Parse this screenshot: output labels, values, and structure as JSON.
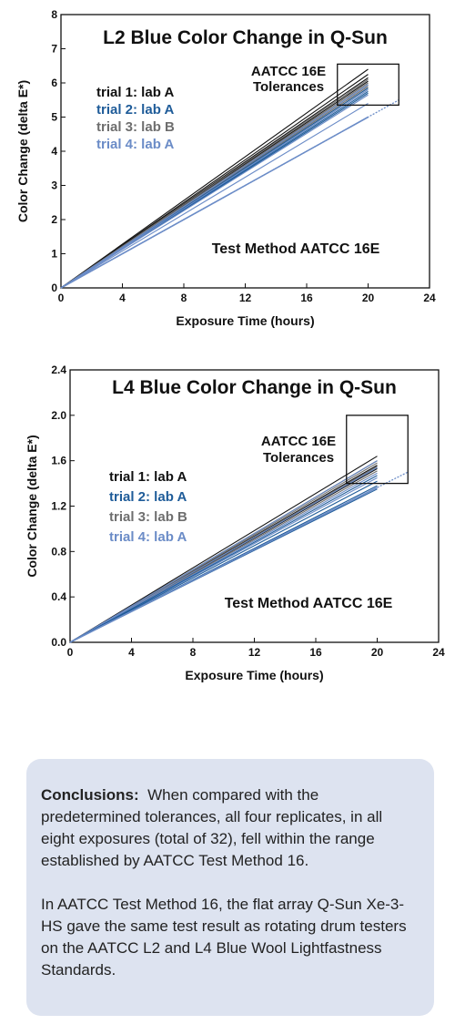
{
  "chart_data": [
    {
      "type": "line",
      "title": "L2 Blue Color Change in Q-Sun",
      "xlabel": "Exposure Time (hours)",
      "ylabel": "Color Change (delta E*)",
      "xlim": [
        0,
        24
      ],
      "ylim": [
        0,
        8
      ],
      "x_ticks": [
        "0",
        "4",
        "8",
        "12",
        "16",
        "20",
        "24"
      ],
      "y_ticks": [
        "0",
        "1",
        "2",
        "3",
        "4",
        "5",
        "6",
        "7",
        "8"
      ],
      "legend": [
        {
          "label": "trial 1: lab A",
          "color": "#111111"
        },
        {
          "label": "trial 2: lab A",
          "color": "#1f5c99"
        },
        {
          "label": "trial 3: lab B",
          "color": "#6e6e6e"
        },
        {
          "label": "trial 4: lab A",
          "color": "#6b8cc7"
        }
      ],
      "tolerance_label": [
        "AATCC 16E",
        "Tolerances"
      ],
      "tolerance_box": {
        "x": [
          18,
          22
        ],
        "y": [
          5.35,
          6.55
        ]
      },
      "method_label": "Test Method AATCC 16E",
      "reference_line": {
        "x": [
          0,
          22
        ],
        "y": [
          0,
          5.5
        ],
        "color": "#6b8cc7"
      },
      "series": [
        {
          "color": "#111111",
          "x": [
            0,
            20
          ],
          "y": [
            0,
            6.4
          ]
        },
        {
          "color": "#111111",
          "x": [
            0,
            20
          ],
          "y": [
            0,
            6.25
          ]
        },
        {
          "color": "#111111",
          "x": [
            0,
            20
          ],
          "y": [
            0,
            6.15
          ]
        },
        {
          "color": "#111111",
          "x": [
            0,
            20
          ],
          "y": [
            0,
            6.05
          ]
        },
        {
          "color": "#111111",
          "x": [
            0,
            20
          ],
          "y": [
            0,
            5.95
          ]
        },
        {
          "color": "#6e6e6e",
          "x": [
            0,
            20
          ],
          "y": [
            0,
            6.1
          ]
        },
        {
          "color": "#6e6e6e",
          "x": [
            0,
            20
          ],
          "y": [
            0,
            6.0
          ]
        },
        {
          "color": "#6e6e6e",
          "x": [
            0,
            20
          ],
          "y": [
            0,
            5.9
          ]
        },
        {
          "color": "#6e6e6e",
          "x": [
            0,
            20
          ],
          "y": [
            0,
            5.85
          ]
        },
        {
          "color": "#1f5c99",
          "x": [
            0,
            20
          ],
          "y": [
            0,
            5.85
          ]
        },
        {
          "color": "#1f5c99",
          "x": [
            0,
            20
          ],
          "y": [
            0,
            5.75
          ]
        },
        {
          "color": "#1f5c99",
          "x": [
            0,
            20
          ],
          "y": [
            0,
            5.7
          ]
        },
        {
          "color": "#6b8cc7",
          "x": [
            0,
            20
          ],
          "y": [
            0,
            5.95
          ]
        },
        {
          "color": "#6b8cc7",
          "x": [
            0,
            20
          ],
          "y": [
            0,
            5.8
          ]
        },
        {
          "color": "#6b8cc7",
          "x": [
            0,
            20
          ],
          "y": [
            0,
            5.65
          ]
        },
        {
          "color": "#6b8cc7",
          "x": [
            0,
            20
          ],
          "y": [
            0,
            5.4
          ]
        }
      ]
    },
    {
      "type": "line",
      "title": "L4 Blue Color Change in Q-Sun",
      "xlabel": "Exposure Time (hours)",
      "ylabel": "Color Change (delta E*)",
      "xlim": [
        0,
        24
      ],
      "ylim": [
        0,
        2.4
      ],
      "x_ticks": [
        "0",
        "4",
        "8",
        "12",
        "16",
        "20",
        "24"
      ],
      "y_ticks": [
        "0.0",
        "0.4",
        "0.8",
        "1.2",
        "1.6",
        "2.0",
        "2.4"
      ],
      "legend": [
        {
          "label": "trial 1: lab A",
          "color": "#111111"
        },
        {
          "label": "trial 2: lab A",
          "color": "#1f5c99"
        },
        {
          "label": "trial 3: lab B",
          "color": "#6e6e6e"
        },
        {
          "label": "trial 4: lab A",
          "color": "#6b8cc7"
        }
      ],
      "tolerance_label": [
        "AATCC 16E",
        "Tolerances"
      ],
      "tolerance_box": {
        "x": [
          18,
          22
        ],
        "y": [
          1.4,
          2.0
        ]
      },
      "method_label": "Test Method AATCC 16E",
      "reference_line": {
        "x": [
          0,
          22
        ],
        "y": [
          0,
          1.5
        ],
        "color": "#6b8cc7"
      },
      "series": [
        {
          "color": "#111111",
          "x": [
            0,
            20
          ],
          "y": [
            0,
            1.64
          ]
        },
        {
          "color": "#111111",
          "x": [
            0,
            20
          ],
          "y": [
            0,
            1.6
          ]
        },
        {
          "color": "#111111",
          "x": [
            0,
            20
          ],
          "y": [
            0,
            1.56
          ]
        },
        {
          "color": "#111111",
          "x": [
            0,
            20
          ],
          "y": [
            0,
            1.53
          ]
        },
        {
          "color": "#6e6e6e",
          "x": [
            0,
            20
          ],
          "y": [
            0,
            1.58
          ]
        },
        {
          "color": "#6e6e6e",
          "x": [
            0,
            20
          ],
          "y": [
            0,
            1.55
          ]
        },
        {
          "color": "#6e6e6e",
          "x": [
            0,
            20
          ],
          "y": [
            0,
            1.51
          ]
        },
        {
          "color": "#6b8cc7",
          "x": [
            0,
            20
          ],
          "y": [
            0,
            1.6
          ]
        },
        {
          "color": "#6b8cc7",
          "x": [
            0,
            20
          ],
          "y": [
            0,
            1.54
          ]
        },
        {
          "color": "#6b8cc7",
          "x": [
            0,
            20
          ],
          "y": [
            0,
            1.49
          ]
        },
        {
          "color": "#6b8cc7",
          "x": [
            0,
            20
          ],
          "y": [
            0,
            1.45
          ]
        },
        {
          "color": "#1f5c99",
          "x": [
            0,
            20
          ],
          "y": [
            0,
            1.47
          ]
        },
        {
          "color": "#1f5c99",
          "x": [
            0,
            20
          ],
          "y": [
            0,
            1.42
          ]
        },
        {
          "color": "#1f5c99",
          "x": [
            0,
            20
          ],
          "y": [
            0,
            1.38
          ]
        },
        {
          "color": "#1f5c99",
          "x": [
            0,
            20
          ],
          "y": [
            0,
            1.35
          ]
        }
      ]
    }
  ],
  "conclusions": {
    "heading": "Conclusions:",
    "paragraph1": "When compared with the predetermined tolerances, all four replicates, in all eight exposures (total of 32), fell within the range established by AATCC Test Method 16.",
    "paragraph2": "In AATCC Test Method 16, the flat array Q-Sun Xe-3-HS gave the same test result as rotating drum testers on the AATCC L2 and L4 Blue Wool Lightfastness Standards."
  }
}
